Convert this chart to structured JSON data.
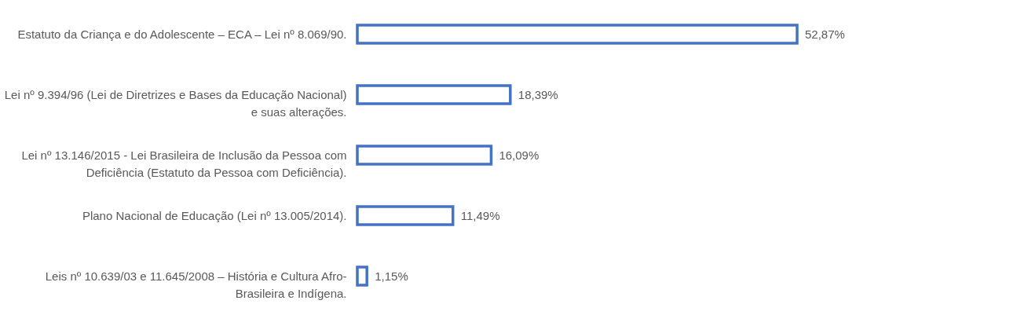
{
  "chart_data": {
    "type": "bar",
    "orientation": "horizontal",
    "categories": [
      "Estatuto da Criança e do Adolescente – ECA – Lei nº 8.069/90.",
      "Lei nº 9.394/96 (Lei de Diretrizes e Bases da Educação Nacional)\ne suas alterações.",
      "Lei nº 13.146/2015 - Lei Brasileira de Inclusão da Pessoa com\nDeficiência (Estatuto da Pessoa com Deficiência).",
      "Plano Nacional de Educação (Lei nº 13.005/2014).",
      "Leis nº 10.639/03 e 11.645/2008 – História e Cultura Afro-\nBrasileira e Indígena."
    ],
    "values": [
      52.87,
      18.39,
      16.09,
      11.49,
      1.15
    ],
    "value_labels": [
      "52,87%",
      "18,39%",
      "16,09%",
      "11,49%",
      "1,15%"
    ],
    "color": "#4472c4"
  }
}
